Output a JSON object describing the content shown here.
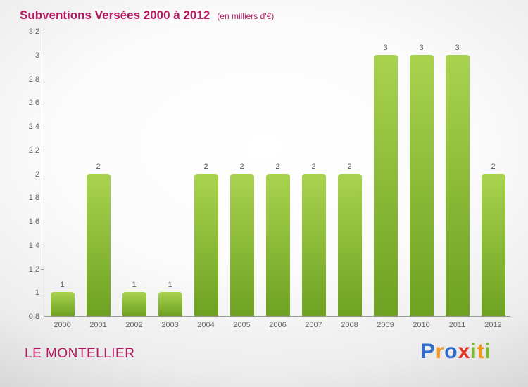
{
  "header": {
    "title": "Subventions Versées 2000 à 2012",
    "subtitle": "(en milliers d'€)"
  },
  "footer": {
    "org_name": "LE MONTELLIER",
    "logo": {
      "text": "Proxiti",
      "letters": [
        {
          "ch": "P",
          "color": "#2f6bc9"
        },
        {
          "ch": "r",
          "color": "#f7941e"
        },
        {
          "ch": "o",
          "color": "#2f6bc9"
        },
        {
          "ch": "x",
          "color": "#e63329"
        },
        {
          "ch": "i",
          "color": "#7cb82f"
        },
        {
          "ch": "t",
          "color": "#f7941e"
        },
        {
          "ch": "i",
          "color": "#7cb82f"
        }
      ]
    }
  },
  "colors": {
    "title": "#b5185f",
    "axis": "#999999",
    "tick_label": "#666666",
    "value_label": "#555555",
    "bar_top": "#a9d34f",
    "bar_bottom": "#6ea122"
  },
  "chart_data": {
    "type": "bar",
    "title": "Subventions Versées 2000 à 2012",
    "subtitle": "(en milliers d'€)",
    "categories": [
      "2000",
      "2001",
      "2002",
      "2003",
      "2004",
      "2005",
      "2006",
      "2007",
      "2008",
      "2009",
      "2010",
      "2011",
      "2012"
    ],
    "values": [
      1,
      2,
      1,
      1,
      2,
      2,
      2,
      2,
      2,
      3,
      3,
      3,
      2
    ],
    "xlabel": "",
    "ylabel": "",
    "ylim": [
      0.8,
      3.2
    ],
    "ytick_labels": [
      "0.8",
      "1",
      "1.2",
      "1.4",
      "1.6",
      "1.8",
      "2",
      "2.2",
      "2.4",
      "2.6",
      "2.8",
      "3",
      "3.2"
    ],
    "grid": false,
    "legend": false,
    "bar_value_labels": true
  }
}
